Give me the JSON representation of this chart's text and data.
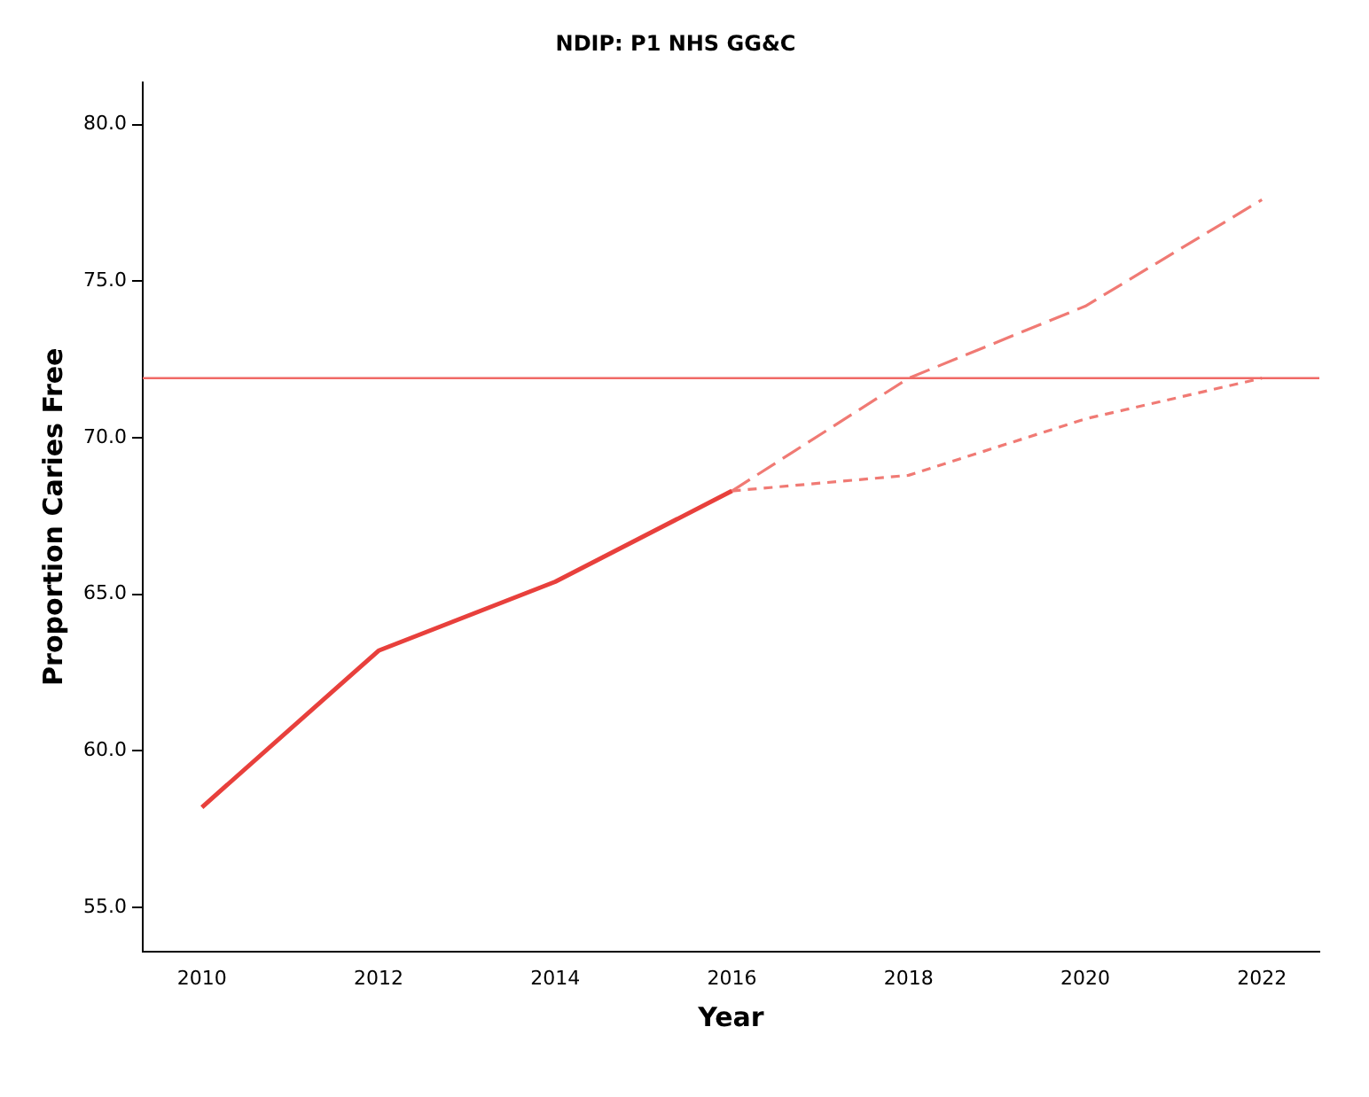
{
  "chart_data": {
    "type": "line",
    "title": "NDIP: P1 NHS GG&C",
    "xlabel": "Year",
    "ylabel": "Proportion Caries Free",
    "xlim": [
      2009.33,
      2022.65
    ],
    "xticks": [
      2010,
      2012,
      2014,
      2016,
      2018,
      2020,
      2022
    ],
    "ylim": [
      53.6,
      81.35
    ],
    "yticks": [
      {
        "value": 55,
        "label": "55.0"
      },
      {
        "value": 60,
        "label": "60.0"
      },
      {
        "value": 65,
        "label": "65.0"
      },
      {
        "value": 70,
        "label": "70.0"
      },
      {
        "value": 75,
        "label": "75.0"
      },
      {
        "value": 80,
        "label": "80.0"
      }
    ],
    "grid": false,
    "legend": false,
    "marker": "none",
    "series": [
      {
        "color": "#e8403c",
        "line_style": "solid",
        "x": [
          2010,
          2012,
          2014,
          2016
        ],
        "values": [
          58.2,
          63.2,
          65.4,
          68.3
        ]
      },
      {
        "color": "#f07a74",
        "line_style": "dashed",
        "x": [
          2016,
          2018,
          2020,
          2022
        ],
        "values": [
          68.3,
          71.9,
          74.2,
          77.6
        ]
      },
      {
        "color": "#f07a74",
        "line_style": "dotted",
        "x": [
          2016,
          2018,
          2020,
          2022
        ],
        "values": [
          68.3,
          68.8,
          70.6,
          71.9
        ]
      }
    ],
    "ref_lines": [
      {
        "axis": "y",
        "value": 71.9,
        "color": "#f06a66",
        "line_style": "solid"
      }
    ]
  }
}
